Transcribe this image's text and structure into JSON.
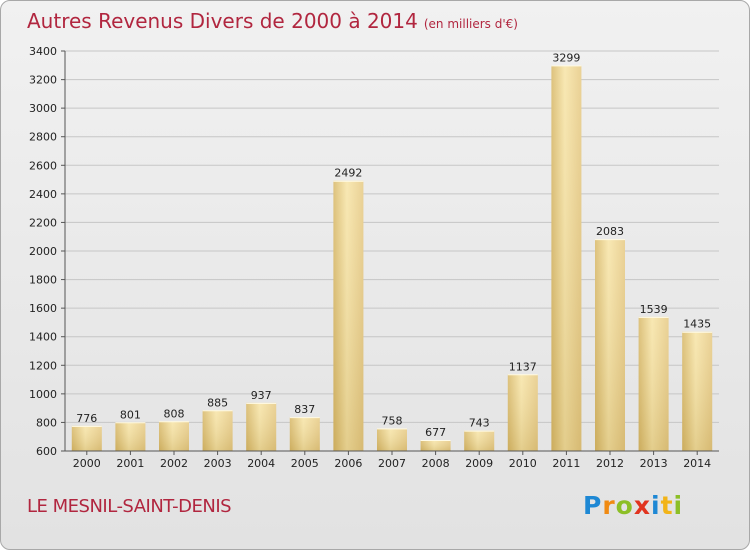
{
  "title": "Autres Revenus Divers de 2000 à 2014",
  "subtitle": "(en milliers d'€)",
  "city": "LE MESNIL-SAINT-DENIS",
  "logo": {
    "parts": [
      "P",
      "r",
      "o",
      "x",
      "i",
      "t",
      "i"
    ]
  },
  "colors": {
    "title": "#b1263f",
    "bar_light": "#f6e3a4",
    "bar_dark": "#d9b96a",
    "grid": "#c4c4c4"
  },
  "chart_data": {
    "type": "bar",
    "title": "Autres Revenus Divers de 2000 à 2014",
    "xlabel": "",
    "ylabel": "",
    "categories": [
      "2000",
      "2001",
      "2002",
      "2003",
      "2004",
      "2005",
      "2006",
      "2007",
      "2008",
      "2009",
      "2010",
      "2011",
      "2012",
      "2013",
      "2014"
    ],
    "values": [
      776,
      801,
      808,
      885,
      937,
      837,
      2492,
      758,
      677,
      743,
      1137,
      3299,
      2083,
      1539,
      1435
    ],
    "ylim": [
      600,
      3400
    ],
    "yticks": [
      600,
      800,
      1000,
      1200,
      1400,
      1600,
      1800,
      2000,
      2200,
      2400,
      2600,
      2800,
      3000,
      3200,
      3400
    ],
    "grid": true
  }
}
